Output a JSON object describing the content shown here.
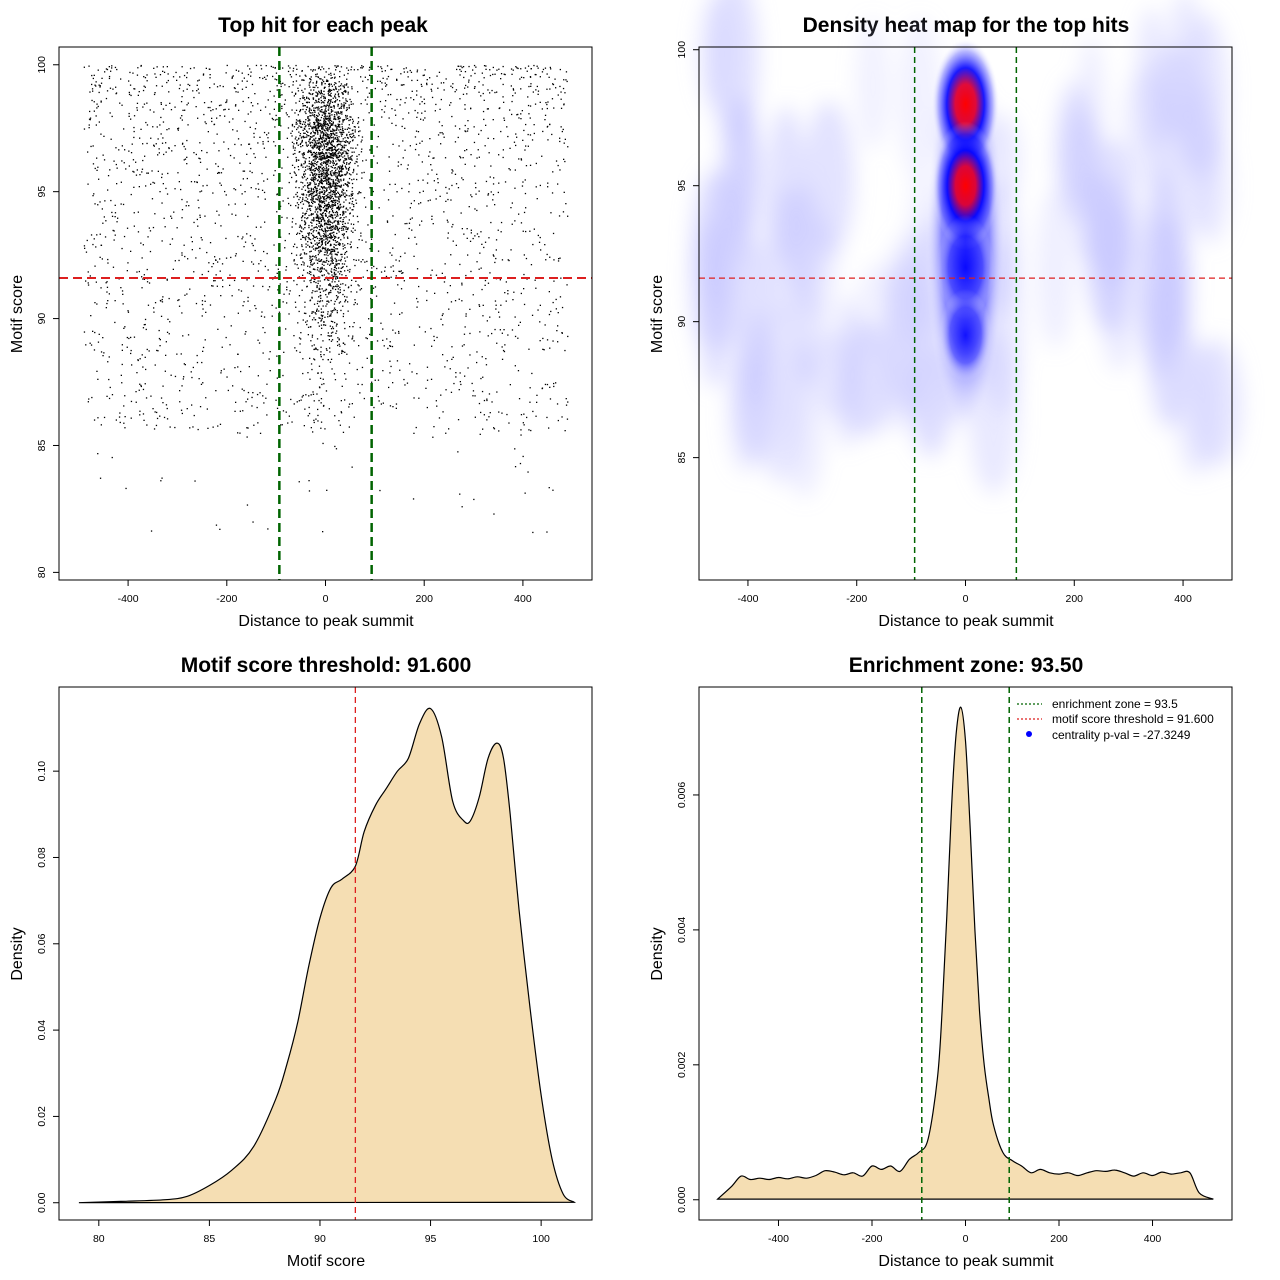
{
  "colors": {
    "threshold": "#dd1f1f",
    "zone": "#006400",
    "fill": "#f5deb3",
    "heat_mid": "#0000ff",
    "heat_high": "#ff0000"
  },
  "chart_data": [
    {
      "type": "scatter",
      "title": "Top hit for each peak",
      "xlabel": "Distance to peak summit",
      "ylabel": "Motif score",
      "xlim": [
        -540,
        540
      ],
      "ylim": [
        79.7,
        100.7
      ],
      "x_ticks": [
        "-400",
        "-200",
        "0",
        "200",
        "400"
      ],
      "x_tick_values": [
        -400,
        -200,
        0,
        200,
        400
      ],
      "y_ticks": [
        "80",
        "85",
        "90",
        "95",
        "100"
      ],
      "y_tick_values": [
        80,
        85,
        90,
        95,
        100
      ],
      "threshold": 91.6,
      "zone": [
        -93.5,
        93.5
      ],
      "x_range": [
        -500,
        500
      ],
      "y_range": [
        80.5,
        100
      ],
      "grid": false
    },
    {
      "type": "heatmap",
      "title": "Density heat map for the top hits",
      "xlabel": "Distance to peak summit",
      "ylabel": "Motif score",
      "xlim": [
        -490,
        490
      ],
      "ylim": [
        80.5,
        100.1
      ],
      "x_ticks": [
        "-400",
        "-200",
        "0",
        "200",
        "400"
      ],
      "x_tick_values": [
        -400,
        -200,
        0,
        200,
        400
      ],
      "y_ticks": [
        "85",
        "90",
        "95",
        "100"
      ],
      "y_tick_values": [
        85,
        90,
        95,
        100
      ],
      "threshold": 91.6,
      "zone": [
        -93.5,
        93.5
      ],
      "hotspots": [
        {
          "x": 0,
          "y": 98,
          "intensity": 1.0
        },
        {
          "x": 0,
          "y": 95,
          "intensity": 0.95
        },
        {
          "x": 0,
          "y": 92,
          "intensity": 0.55
        },
        {
          "x": 0,
          "y": 89.5,
          "intensity": 0.35
        }
      ],
      "grid": false
    },
    {
      "type": "area",
      "title": "Motif score threshold: 91.600",
      "xlabel": "Motif score",
      "ylabel": "Density",
      "xlim": [
        78.2,
        102.3
      ],
      "ylim": [
        -0.004,
        0.1195
      ],
      "x_ticks": [
        "80",
        "85",
        "90",
        "95",
        "100"
      ],
      "x_tick_values": [
        80,
        85,
        90,
        95,
        100
      ],
      "y_ticks": [
        "0.00",
        "0.02",
        "0.04",
        "0.06",
        "0.08",
        "0.10"
      ],
      "y_tick_values": [
        0,
        0.02,
        0.04,
        0.06,
        0.08,
        0.1
      ],
      "threshold": 91.6,
      "x": [
        79.1,
        81,
        83,
        84,
        85,
        86,
        87,
        88,
        88.5,
        89,
        89.5,
        90,
        90.5,
        91,
        91.6,
        92,
        92.5,
        93,
        93.5,
        94,
        94.5,
        95,
        95.5,
        96,
        96.5,
        96.8,
        97.2,
        97.6,
        98,
        98.3,
        98.6,
        99,
        99.5,
        100,
        100.5,
        101,
        101.5
      ],
      "y": [
        0,
        0.0003,
        0.0007,
        0.0015,
        0.004,
        0.0075,
        0.013,
        0.024,
        0.032,
        0.042,
        0.055,
        0.066,
        0.073,
        0.075,
        0.078,
        0.086,
        0.092,
        0.096,
        0.1,
        0.103,
        0.111,
        0.1145,
        0.108,
        0.093,
        0.0885,
        0.0885,
        0.094,
        0.103,
        0.1065,
        0.103,
        0.09,
        0.068,
        0.045,
        0.025,
        0.01,
        0.002,
        0.0001
      ]
    },
    {
      "type": "area",
      "title": "Enrichment zone: 93.50",
      "xlabel": "Distance to peak summit",
      "ylabel": "Density",
      "xlim": [
        -570,
        570
      ],
      "ylim": [
        -0.0003,
        0.0076
      ],
      "x_ticks": [
        "-400",
        "-200",
        "0",
        "200",
        "400"
      ],
      "x_tick_values": [
        -400,
        -200,
        0,
        200,
        400
      ],
      "y_ticks": [
        "0.000",
        "0.002",
        "0.004",
        "0.006"
      ],
      "y_tick_values": [
        0,
        0.002,
        0.004,
        0.006
      ],
      "zone": [
        -93.5,
        93.5
      ],
      "x": [
        -530,
        -500,
        -480,
        -460,
        -440,
        -420,
        -400,
        -380,
        -360,
        -340,
        -320,
        -300,
        -280,
        -260,
        -240,
        -220,
        -200,
        -180,
        -160,
        -140,
        -120,
        -100,
        -80,
        -60,
        -50,
        -40,
        -30,
        -20,
        -10,
        0,
        10,
        20,
        30,
        40,
        50,
        60,
        80,
        100,
        120,
        140,
        160,
        180,
        200,
        220,
        240,
        260,
        280,
        300,
        320,
        340,
        360,
        380,
        400,
        420,
        440,
        460,
        480,
        500,
        530
      ],
      "y": [
        1e-05,
        0.0002,
        0.00035,
        0.0003,
        0.00032,
        0.0003,
        0.00033,
        0.00031,
        0.00034,
        0.00032,
        0.00036,
        0.00043,
        0.00041,
        0.00037,
        0.0004,
        0.00035,
        0.0005,
        0.00045,
        0.0005,
        0.00042,
        0.0006,
        0.0007,
        0.0009,
        0.0018,
        0.0028,
        0.0042,
        0.0058,
        0.0069,
        0.0073,
        0.0068,
        0.0055,
        0.004,
        0.0028,
        0.002,
        0.0015,
        0.0011,
        0.0007,
        0.00058,
        0.0005,
        0.0004,
        0.00045,
        0.0004,
        0.00038,
        0.0004,
        0.00036,
        0.0004,
        0.00043,
        0.00042,
        0.00044,
        0.0004,
        0.00035,
        0.0004,
        0.00036,
        0.00041,
        0.00038,
        0.0004,
        0.0004,
        0.0001,
        1e-05
      ],
      "legend": [
        {
          "label": "enrichment zone = 93.5",
          "style": "dotted",
          "color": "#006400"
        },
        {
          "label": "motif score threshold = 91.600",
          "style": "dotted",
          "color": "#dd1f1f"
        },
        {
          "label": "centrality p-val = -27.3249",
          "style": "point",
          "color": "#0000ff"
        }
      ],
      "legend_position": "top-right"
    }
  ]
}
